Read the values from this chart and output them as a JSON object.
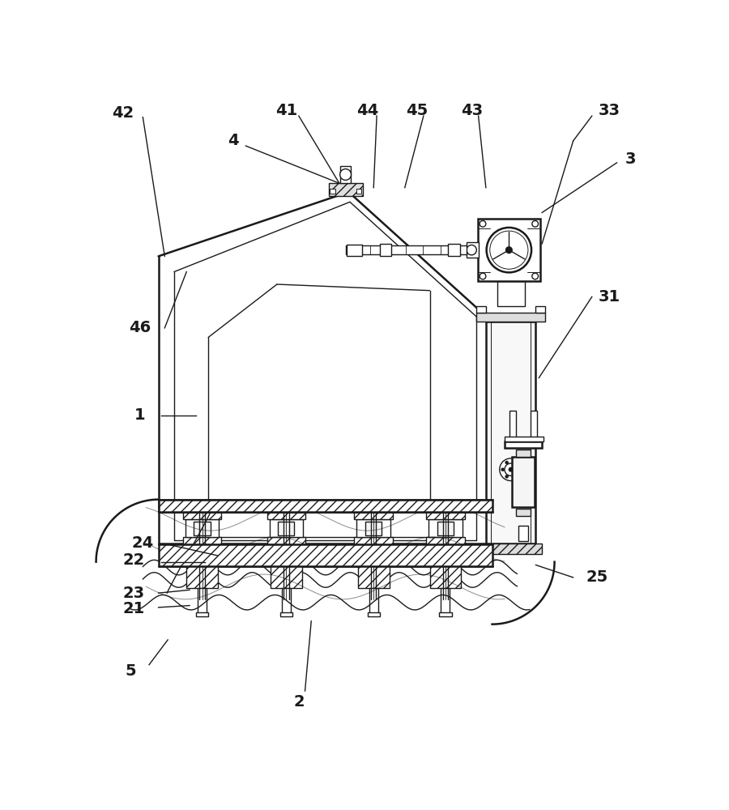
{
  "bg_color": "#ffffff",
  "lc": "#1a1a1a",
  "lw": 1.0,
  "lw2": 1.8,
  "lw3": 2.5,
  "figsize": [
    9.0,
    10.0
  ],
  "dpi": 100
}
